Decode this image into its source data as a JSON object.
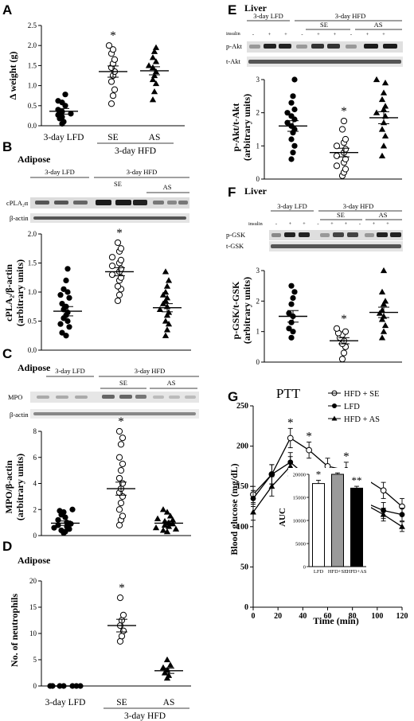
{
  "panels": {
    "A": {
      "letter": "A",
      "chart_data": {
        "type": "scatter",
        "ylabel": "Δ weight (g)",
        "ylim": [
          0,
          2.5
        ],
        "yticks": [
          "0.0",
          "0.5",
          "1.0",
          "1.5",
          "2.0",
          "2.5"
        ],
        "categories": [
          "3-day LFD",
          "SE",
          "AS"
        ],
        "group_label": "3-day HFD",
        "series": [
          {
            "values": [
              0.05,
              0.1,
              0.18,
              0.22,
              0.27,
              0.3,
              0.35,
              0.4,
              0.5,
              0.58,
              0.62,
              0.78
            ],
            "mean": 0.36,
            "sem": 0.07,
            "marker": "filled-circle"
          },
          {
            "values": [
              0.55,
              0.75,
              0.9,
              1.1,
              1.25,
              1.35,
              1.45,
              1.55,
              1.65,
              1.8,
              1.9,
              2.0
            ],
            "mean": 1.35,
            "sem": 0.14,
            "marker": "open-circle"
          },
          {
            "values": [
              0.65,
              0.85,
              1.05,
              1.15,
              1.25,
              1.35,
              1.45,
              1.5,
              1.6,
              1.7,
              1.85,
              1.95
            ],
            "mean": 1.37,
            "sem": 0.1,
            "marker": "filled-triangle"
          }
        ],
        "significance": [
          "",
          "*",
          ""
        ]
      }
    },
    "B": {
      "letter": "B",
      "tissue": "Adipose",
      "blot": {
        "header_left": "3-day LFD",
        "header_right": "3-day HFD",
        "sub_se": "SE",
        "sub_as": "AS",
        "rows": [
          "cPLA₂α",
          "β-actin"
        ]
      },
      "chart_data": {
        "type": "scatter",
        "ylabel": "cPLA₂/β-actin",
        "ylabel2": "(arbitrary units)",
        "ylim": [
          0,
          2.0
        ],
        "yticks": [
          "0.0",
          "0.5",
          "1.0",
          "1.5",
          "2.0"
        ],
        "series": [
          {
            "values": [
              0.25,
              0.3,
              0.4,
              0.45,
              0.5,
              0.55,
              0.6,
              0.65,
              0.7,
              0.75,
              0.8,
              0.9,
              0.95,
              1.0,
              1.05,
              1.2,
              1.4
            ],
            "mean": 0.67,
            "sem": 0.08,
            "marker": "filled-circle"
          },
          {
            "values": [
              0.85,
              0.95,
              1.05,
              1.1,
              1.2,
              1.25,
              1.3,
              1.35,
              1.4,
              1.45,
              1.5,
              1.55,
              1.6,
              1.7,
              1.75,
              1.85
            ],
            "mean": 1.35,
            "sem": 0.07,
            "marker": "open-circle"
          },
          {
            "values": [
              0.25,
              0.35,
              0.45,
              0.5,
              0.6,
              0.65,
              0.7,
              0.75,
              0.8,
              0.85,
              0.9,
              0.95,
              1.0,
              1.1,
              1.2,
              1.35
            ],
            "mean": 0.73,
            "sem": 0.07,
            "marker": "filled-triangle"
          }
        ],
        "significance": [
          "",
          "*",
          ""
        ]
      }
    },
    "C": {
      "letter": "C",
      "tissue": "Adipose",
      "blot": {
        "header_left": "3-day LFD",
        "header_right": "3-day HFD",
        "sub_se": "SE",
        "sub_as": "AS",
        "rows": [
          "MPO",
          "β-actin"
        ]
      },
      "chart_data": {
        "type": "scatter",
        "ylabel": "MPO/β-actin",
        "ylabel2": "(arbitrary units)",
        "ylim": [
          0,
          8
        ],
        "yticks": [
          "0",
          "2",
          "4",
          "6",
          "8"
        ],
        "series": [
          {
            "values": [
              0.2,
              0.3,
              0.4,
              0.5,
              0.6,
              0.7,
              0.8,
              0.9,
              1.0,
              1.2,
              1.4,
              1.6,
              1.8,
              1.9,
              2.0
            ],
            "mean": 0.95,
            "sem": 0.17,
            "marker": "filled-circle"
          },
          {
            "values": [
              0.8,
              1.2,
              1.5,
              2.0,
              2.5,
              3.0,
              3.3,
              3.6,
              4.0,
              4.4,
              5.0,
              5.5,
              6.0,
              7.0,
              7.5,
              8.0
            ],
            "mean": 3.6,
            "sem": 0.5,
            "marker": "open-circle"
          },
          {
            "values": [
              0.3,
              0.4,
              0.5,
              0.6,
              0.7,
              0.8,
              0.9,
              1.0,
              1.1,
              1.2,
              1.3,
              1.5,
              1.8,
              2.0
            ],
            "mean": 0.95,
            "sem": 0.15,
            "marker": "filled-triangle"
          }
        ],
        "significance": [
          "",
          "*",
          ""
        ]
      }
    },
    "D": {
      "letter": "D",
      "tissue": "Adipose",
      "chart_data": {
        "type": "scatter",
        "ylabel": "No. of neutrophils",
        "ylim": [
          0,
          20
        ],
        "yticks": [
          "0",
          "5",
          "10",
          "15",
          "20"
        ],
        "categories": [
          "3-day LFD",
          "SE",
          "AS"
        ],
        "group_label": "3-day HFD",
        "series": [
          {
            "values": [
              0,
              0,
              0,
              0,
              0,
              0,
              0
            ],
            "mean": 0,
            "sem": 0,
            "marker": "filled-circle"
          },
          {
            "values": [
              8.5,
              9.5,
              10.5,
              11.5,
              12.5,
              13.5,
              16.8
            ],
            "mean": 11.5,
            "sem": 1.2,
            "marker": "open-circle"
          },
          {
            "values": [
              1.5,
              2.0,
              2.5,
              3.0,
              3.5,
              4.0,
              5.0
            ],
            "mean": 2.9,
            "sem": 0.5,
            "marker": "filled-triangle"
          }
        ],
        "significance": [
          "",
          "*",
          ""
        ]
      }
    },
    "E": {
      "letter": "E",
      "tissue": "Liver",
      "blot": {
        "header_left": "3-day LFD",
        "header_right": "3-day HFD",
        "sub_se": "SE",
        "sub_as": "AS",
        "insulin": "insulin",
        "signs": [
          "-",
          "+",
          "+",
          "-",
          "+",
          "+",
          "-",
          "+",
          "+"
        ],
        "rows": [
          "p-Akt",
          "t-Akt"
        ]
      },
      "chart_data": {
        "type": "scatter",
        "ylabel": "p-Akt/t-Akt",
        "ylabel2": "(arbitrary units)",
        "ylim": [
          0,
          3
        ],
        "yticks": [
          "0",
          "1",
          "2",
          "3"
        ],
        "series": [
          {
            "values": [
              0.6,
              0.8,
              1.0,
              1.2,
              1.4,
              1.5,
              1.6,
              1.7,
              1.8,
              1.9,
              2.0,
              2.1,
              2.3,
              2.5,
              3.0
            ],
            "mean": 1.6,
            "sem": 0.16,
            "marker": "filled-circle"
          },
          {
            "values": [
              0.1,
              0.2,
              0.3,
              0.4,
              0.5,
              0.6,
              0.7,
              0.8,
              0.9,
              1.0,
              1.1,
              1.2,
              1.5,
              1.75
            ],
            "mean": 0.8,
            "sem": 0.13,
            "marker": "open-circle"
          },
          {
            "values": [
              0.7,
              1.0,
              1.3,
              1.5,
              1.7,
              1.9,
              2.0,
              2.1,
              2.2,
              2.4,
              2.6,
              2.9,
              3.0
            ],
            "mean": 1.85,
            "sem": 0.18,
            "marker": "filled-triangle"
          }
        ],
        "significance": [
          "",
          "*",
          ""
        ]
      }
    },
    "F": {
      "letter": "F",
      "tissue": "Liver",
      "blot": {
        "header_left": "3-day LFD",
        "header_right": "3-day HFD",
        "sub_se": "SE",
        "sub_as": "AS",
        "insulin": "insulin",
        "signs": [
          "-",
          "+",
          "+",
          "-",
          "+",
          "+",
          "-",
          "+",
          "+"
        ],
        "rows": [
          "p-GSK",
          "t-GSK"
        ]
      },
      "chart_data": {
        "type": "scatter",
        "ylabel": "p-GSK/t-GSK",
        "ylabel2": "(arbitrary units)",
        "ylim": [
          0,
          3
        ],
        "yticks": [
          "0",
          "1",
          "2",
          "3"
        ],
        "series": [
          {
            "values": [
              0.8,
              1.0,
              1.1,
              1.3,
              1.5,
              1.6,
              1.9,
              2.1,
              2.3,
              2.5
            ],
            "mean": 1.5,
            "sem": 0.19,
            "marker": "filled-circle"
          },
          {
            "values": [
              0.1,
              0.3,
              0.5,
              0.6,
              0.7,
              0.8,
              0.9,
              0.95,
              1.0,
              1.1
            ],
            "mean": 0.7,
            "sem": 0.1,
            "marker": "open-circle"
          },
          {
            "values": [
              0.8,
              1.0,
              1.2,
              1.4,
              1.5,
              1.6,
              1.7,
              1.9,
              2.0,
              2.3,
              3.0
            ],
            "mean": 1.63,
            "sem": 0.17,
            "marker": "filled-triangle"
          }
        ],
        "significance": [
          "",
          "*",
          ""
        ]
      }
    },
    "G": {
      "letter": "G",
      "title": "PTT",
      "chart_data": {
        "type": "line",
        "title": "PTT",
        "xlabel": "Time (min)",
        "ylabel": "Blood glucose (mg/dL)",
        "xlim": [
          0,
          120
        ],
        "ylim": [
          0,
          250
        ],
        "x": [
          0,
          15,
          30,
          45,
          60,
          75,
          90,
          105,
          120
        ],
        "xticks": [
          "0",
          "20",
          "40",
          "60",
          "80",
          "100",
          "120"
        ],
        "yticks": [
          "0",
          "50",
          "100",
          "150",
          "200",
          "250"
        ],
        "series": [
          {
            "name": "HFD + SE",
            "marker": "open-circle",
            "values": [
              140,
              165,
              210,
              195,
              175,
              170,
              160,
              145,
              125
            ],
            "err": [
              10,
              12,
              12,
              10,
              10,
              10,
              10,
              10,
              10
            ]
          },
          {
            "name": "LFD",
            "marker": "filled-circle",
            "values": [
              135,
              165,
              180,
              160,
              150,
              140,
              130,
              120,
              115
            ],
            "err": [
              10,
              12,
              12,
              10,
              10,
              10,
              10,
              10,
              8
            ]
          },
          {
            "name": "HFD + AS",
            "marker": "filled-triangle",
            "values": [
              118,
              150,
              175,
              150,
              145,
              140,
              128,
              115,
              100
            ],
            "err": [
              10,
              12,
              12,
              10,
              10,
              10,
              10,
              8,
              6
            ]
          }
        ],
        "significance_at": [
          30,
          45,
          75
        ],
        "inset": {
          "type": "bar",
          "ylabel": "AUC",
          "ylim": [
            0,
            20000
          ],
          "yticks": [
            "0",
            "5000",
            "10000",
            "15000",
            "20000"
          ],
          "categories": [
            "LFD",
            "HFD+SE",
            "HFD+AS"
          ],
          "values": [
            18000,
            20000,
            17000
          ],
          "err": [
            700,
            300,
            400
          ],
          "colors": [
            "#ffffff",
            "#9a9a9a",
            "#000000"
          ],
          "significance": [
            "*",
            "",
            "**"
          ]
        }
      }
    }
  }
}
